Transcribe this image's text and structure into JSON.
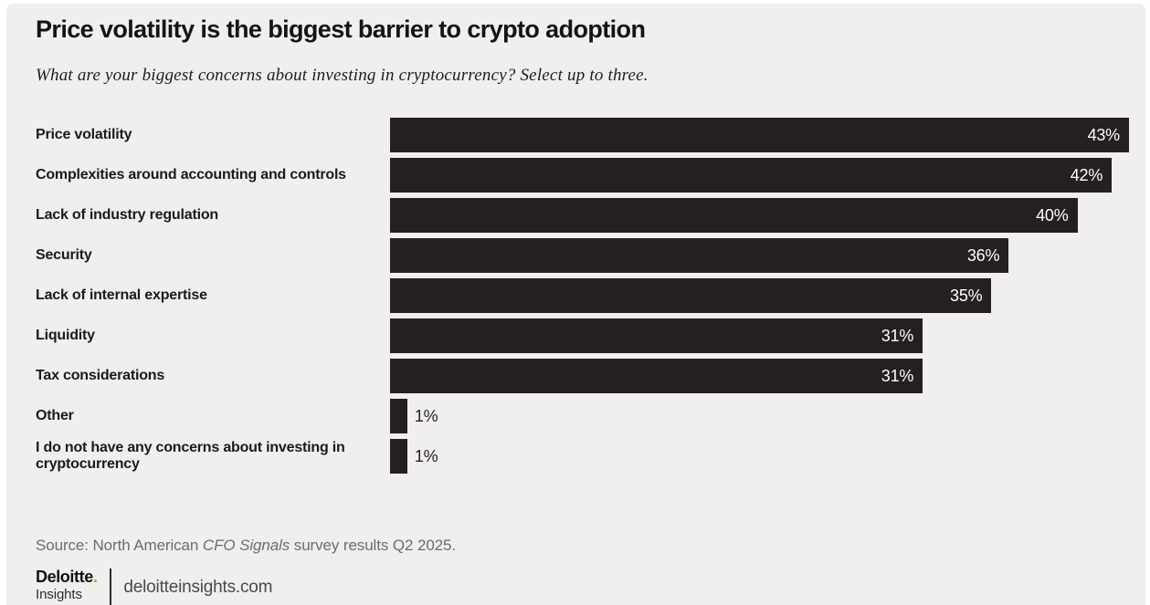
{
  "chart_data": {
    "type": "bar",
    "orientation": "horizontal",
    "title": "Price volatility is the biggest barrier to crypto adoption",
    "subtitle": "What are your biggest concerns about investing in cryptocurrency? Select up to three.",
    "categories": [
      "Price volatility",
      "Complexities around accounting and controls",
      "Lack of industry regulation",
      "Security",
      "Lack of internal expertise",
      "Liquidity",
      "Tax considerations",
      "Other",
      "I do not have any concerns about investing in cryptocurrency"
    ],
    "values": [
      43,
      42,
      40,
      36,
      35,
      31,
      31,
      1,
      1
    ],
    "value_suffix": "%",
    "xlim": [
      0,
      43
    ],
    "legend": "none",
    "grid": "off",
    "bar_color": "#241f21",
    "background_color": "#f0efee",
    "value_label_inside_color": "#ffffff",
    "value_label_outside_color": "#241f21"
  },
  "source": {
    "prefix": "Source: North American ",
    "italic": "CFO Signals",
    "suffix": " survey results Q2 2025."
  },
  "footer": {
    "brand": "Deloitte",
    "brand_dot": ".",
    "brand_sub": "Insights",
    "url": "deloitteinsights.com",
    "accent_color": "#86bc25"
  }
}
